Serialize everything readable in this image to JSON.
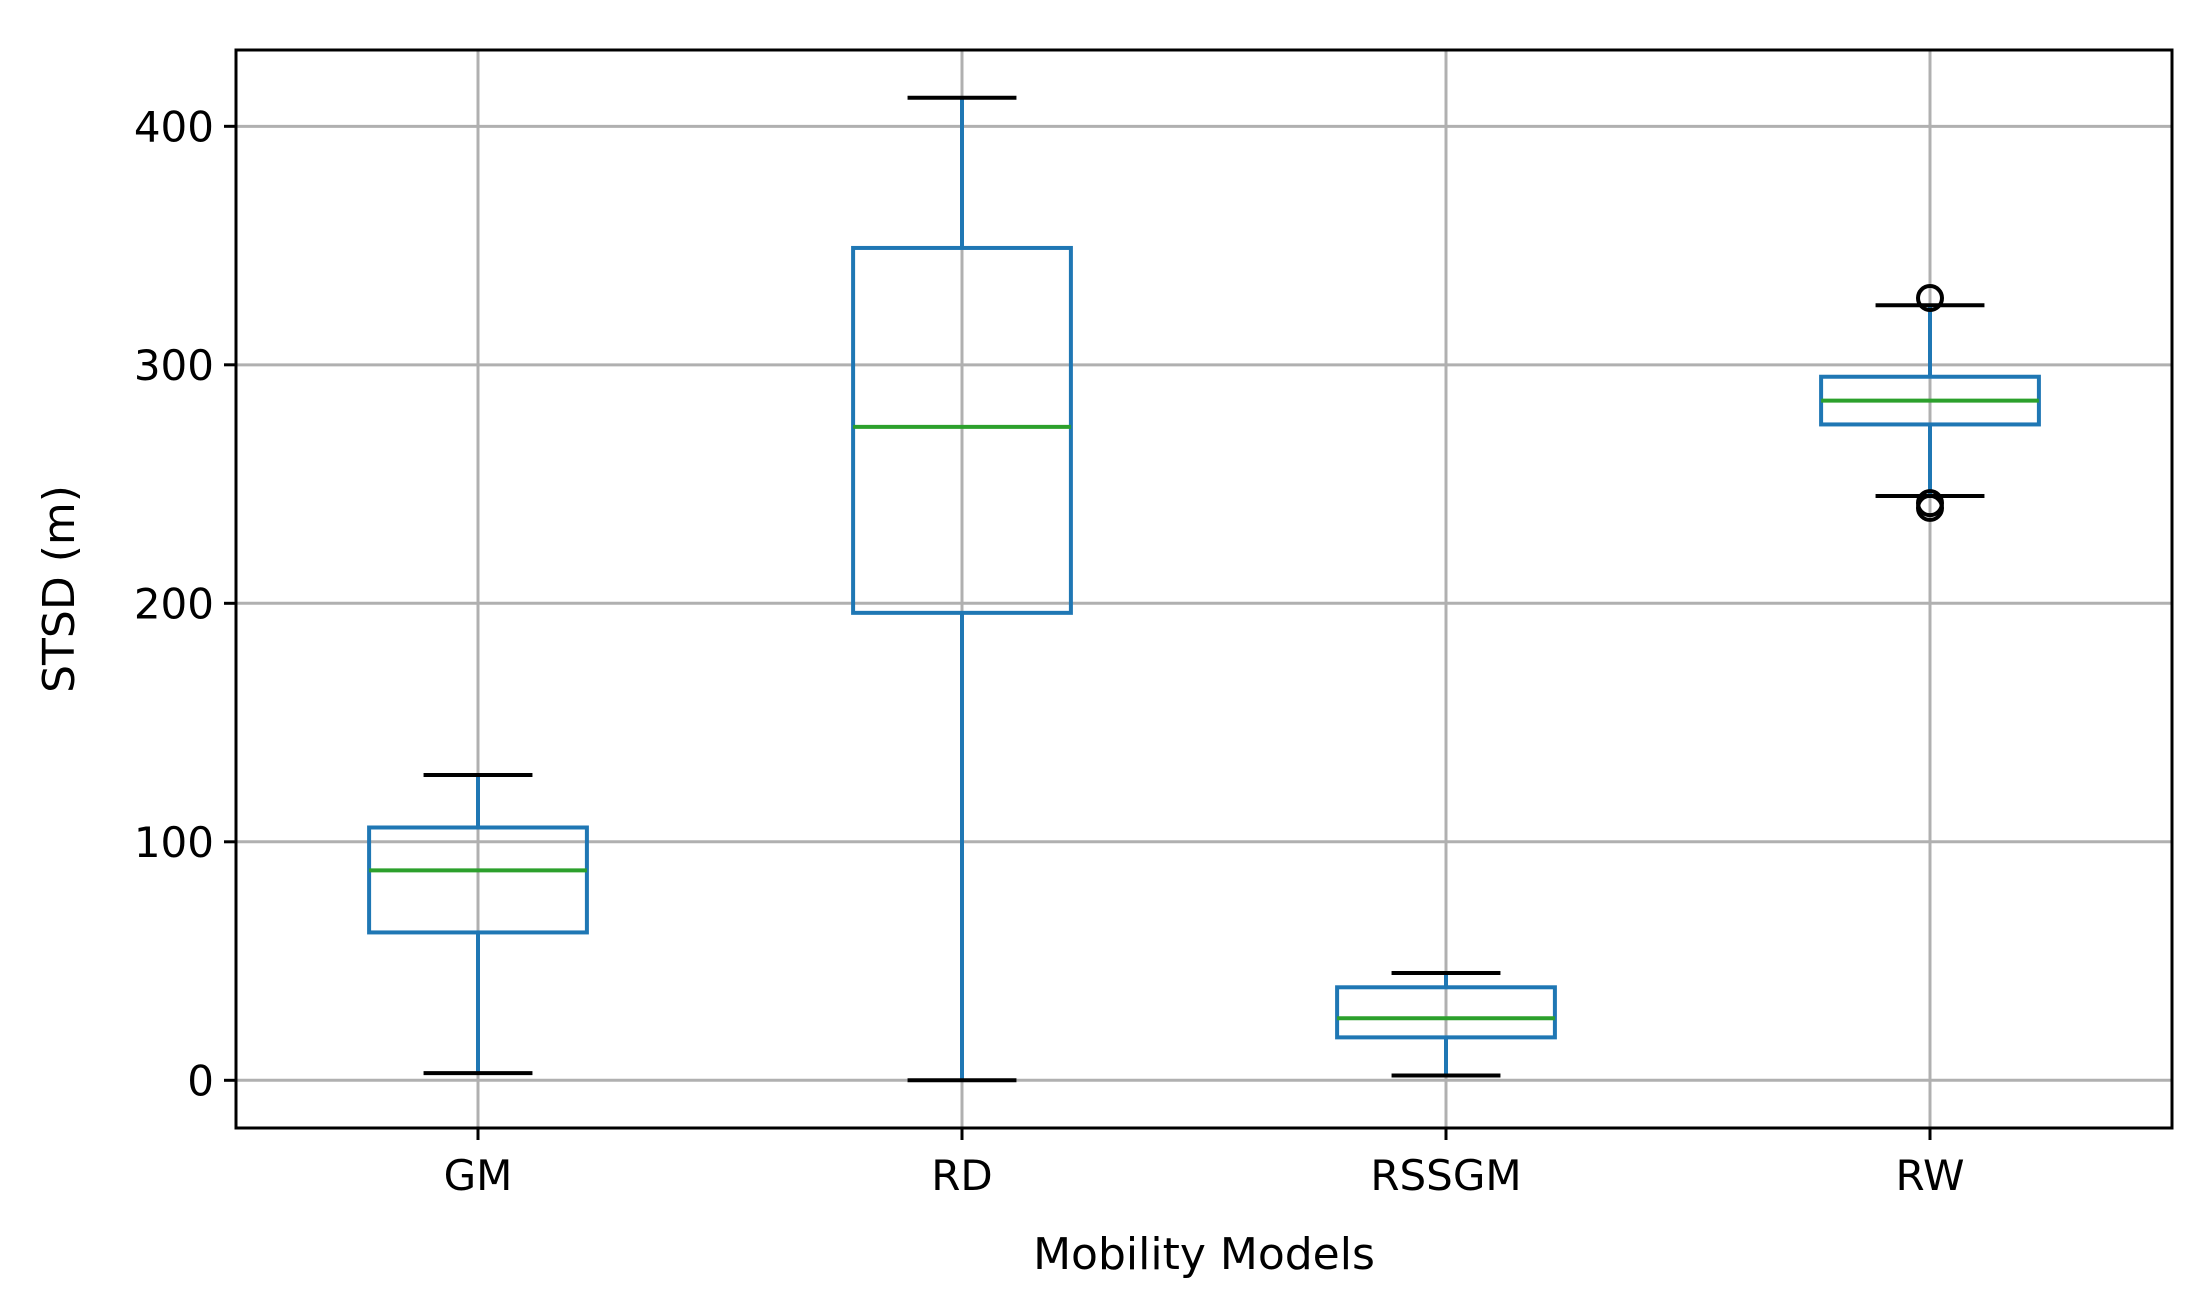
{
  "chart_data": {
    "type": "box",
    "title": "",
    "xlabel": "Mobility Models",
    "ylabel": "STSD (m)",
    "ylim": [
      -20,
      432
    ],
    "yticks": [
      0,
      100,
      200,
      300,
      400
    ],
    "grid": true,
    "categories": [
      "GM",
      "RD",
      "RSSGM",
      "RW"
    ],
    "boxes": [
      {
        "name": "GM",
        "whisker_low": 3,
        "q1": 62,
        "median": 88,
        "q3": 106,
        "whisker_high": 128,
        "outliers": []
      },
      {
        "name": "RD",
        "whisker_low": 0,
        "q1": 196,
        "median": 274,
        "q3": 349,
        "whisker_high": 412,
        "outliers": []
      },
      {
        "name": "RSSGM",
        "whisker_low": 2,
        "q1": 18,
        "median": 26,
        "q3": 39,
        "whisker_high": 45,
        "outliers": []
      },
      {
        "name": "RW",
        "whisker_low": 245,
        "q1": 275,
        "median": 285,
        "q3": 295,
        "whisker_high": 325,
        "outliers": [
          328,
          242,
          240
        ]
      }
    ],
    "colors": {
      "box": "#1f77b4",
      "median": "#2ca02c",
      "cap": "#000000",
      "grid": "#b0b0b0",
      "outlier": "#000000"
    }
  }
}
